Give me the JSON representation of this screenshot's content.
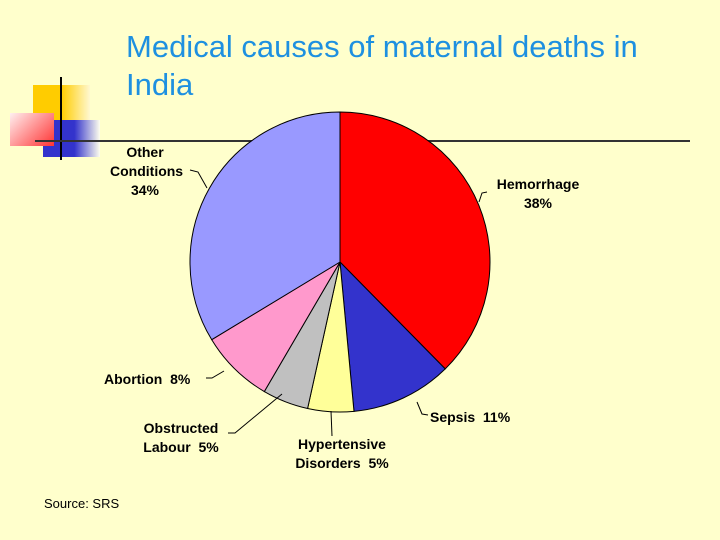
{
  "title": "Medical causes of maternal deaths in India",
  "source": "Source: SRS",
  "chart_data": {
    "type": "pie",
    "title": "Medical causes of maternal deaths in India",
    "start": "12 o'clock, clockwise",
    "slices": [
      {
        "name": "Hemorrhage",
        "value": 38,
        "label": "38%",
        "color": "#ff0000"
      },
      {
        "name": "Sepsis",
        "value": 11,
        "label": "11%",
        "color": "#3333cc"
      },
      {
        "name": "Hypertensive Disorders",
        "value": 5,
        "label": "5%",
        "color": "#ffff99"
      },
      {
        "name": "Obstructed Labour",
        "value": 5,
        "label": "5%",
        "color": "#c0c0c0"
      },
      {
        "name": "Abortion",
        "value": 8,
        "label": "8%",
        "color": "#ff99cc"
      },
      {
        "name": "Other Conditions",
        "value": 34,
        "label": "34%",
        "color": "#9999ff"
      }
    ]
  }
}
